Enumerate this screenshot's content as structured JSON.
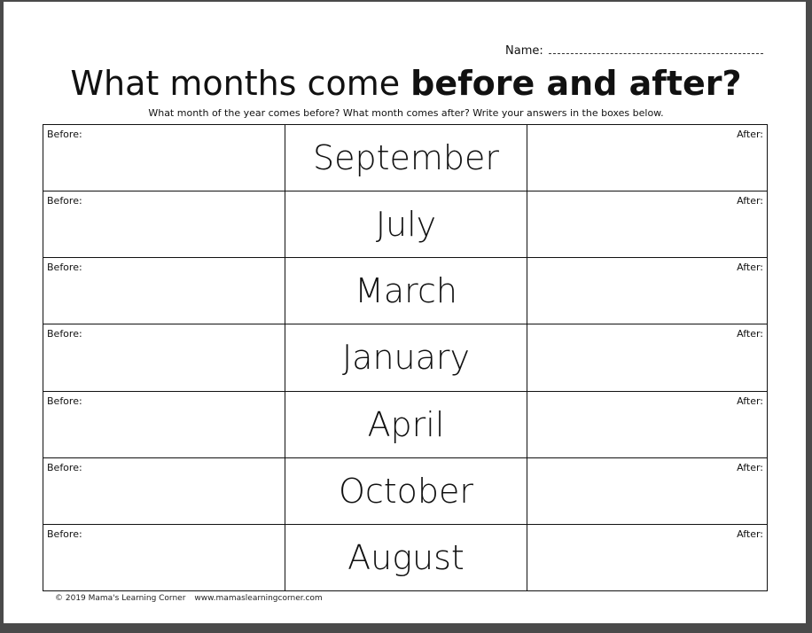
{
  "header": {
    "name_label": "Name:",
    "title_regular": "What months come ",
    "title_bold": "before and after?",
    "instructions": "What month of the year comes before? What month comes after? Write your answers in the boxes below."
  },
  "labels": {
    "before": "Before:",
    "after": "After:"
  },
  "rows": [
    {
      "month": "September"
    },
    {
      "month": "July"
    },
    {
      "month": "March"
    },
    {
      "month": "January"
    },
    {
      "month": "April"
    },
    {
      "month": "October"
    },
    {
      "month": "August"
    }
  ],
  "footer": {
    "copyright": "© 2019  Mama's Learning Corner",
    "url": "www.mamaslearningcorner.com"
  }
}
